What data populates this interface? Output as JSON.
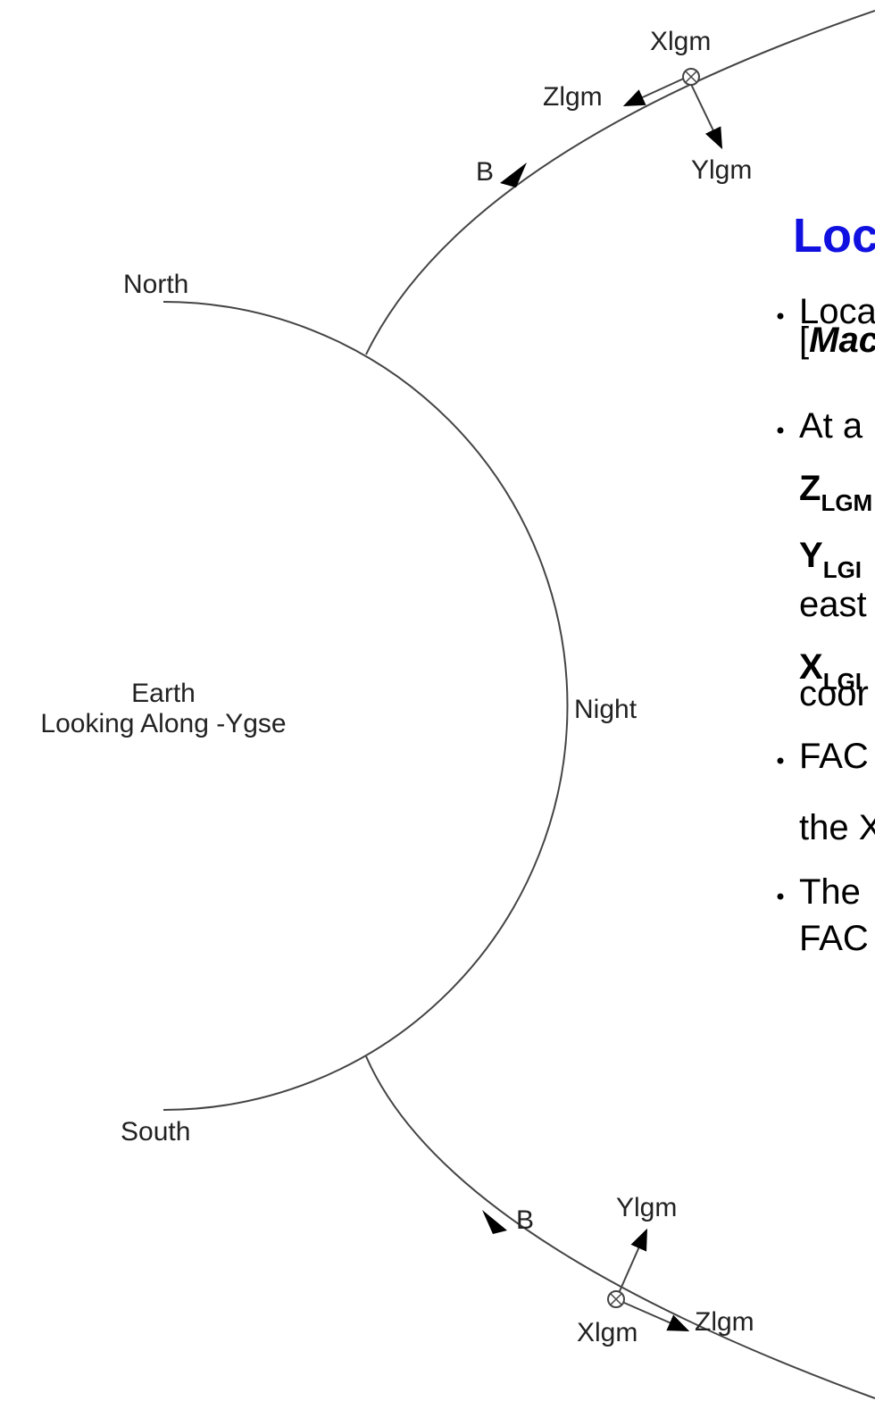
{
  "diagram": {
    "labels": {
      "top_x": "Xlgm",
      "top_z": "Zlgm",
      "top_b": "B",
      "top_y": "Ylgm",
      "north": "North",
      "earth": "Earth",
      "earth_sub": "Looking Along -Ygse",
      "night": "Night",
      "south": "South",
      "bottom_b": "B",
      "bottom_y": "Ylgm",
      "bottom_x": "Xlgm",
      "bottom_z": "Zlgm"
    }
  },
  "slide": {
    "heading": "Loc",
    "bullets": [
      {
        "lines": [
          "Loca"
        ],
        "bracket": "[",
        "bold_italic": "Mac"
      },
      {
        "lines": [
          "At a"
        ]
      },
      {
        "symbol": "Z",
        "subscript": "LGM"
      },
      {
        "symbol": "Y",
        "subscript": "LGI",
        "lines": [
          "east"
        ]
      },
      {
        "symbol": "X",
        "subscript": "LGI",
        "lines": [
          "coor"
        ]
      },
      {
        "lines": [
          "FAC",
          "the X"
        ]
      },
      {
        "lines": [
          "The",
          "FAC"
        ]
      }
    ]
  }
}
